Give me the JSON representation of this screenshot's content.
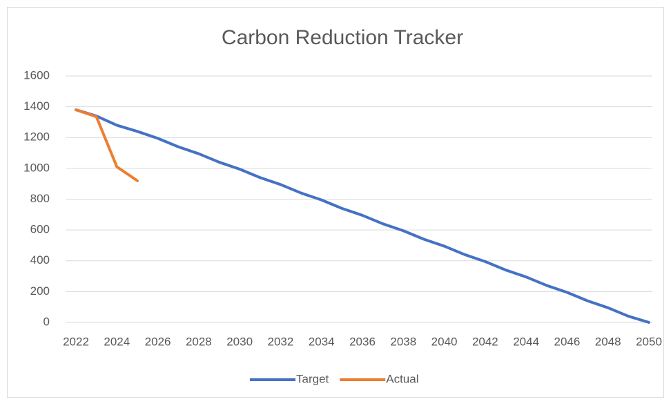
{
  "chart_data": {
    "type": "line",
    "title": "Carbon Reduction Tracker",
    "x": [
      2022,
      2023,
      2024,
      2025,
      2026,
      2027,
      2028,
      2029,
      2030,
      2031,
      2032,
      2033,
      2034,
      2035,
      2036,
      2037,
      2038,
      2039,
      2040,
      2041,
      2042,
      2043,
      2044,
      2045,
      2046,
      2047,
      2048,
      2049,
      2050
    ],
    "series": [
      {
        "name": "Target",
        "color": "#4472c4",
        "values": [
          1380,
          1340,
          1280,
          1240,
          1195,
          1140,
          1095,
          1040,
          995,
          940,
          895,
          840,
          795,
          740,
          695,
          640,
          595,
          540,
          495,
          440,
          395,
          340,
          295,
          240,
          195,
          140,
          95,
          40,
          0
        ]
      },
      {
        "name": "Actual",
        "color": "#ed7d31",
        "values": [
          1380,
          1335,
          1010,
          920,
          null,
          null,
          null,
          null,
          null,
          null,
          null,
          null,
          null,
          null,
          null,
          null,
          null,
          null,
          null,
          null,
          null,
          null,
          null,
          null,
          null,
          null,
          null,
          null,
          null
        ]
      }
    ],
    "xlim": [
      2022,
      2050
    ],
    "xticks": [
      2022,
      2024,
      2026,
      2028,
      2030,
      2032,
      2034,
      2036,
      2038,
      2040,
      2042,
      2044,
      2046,
      2048,
      2050
    ],
    "ylim": [
      0,
      1600
    ],
    "yticks": [
      0,
      200,
      400,
      600,
      800,
      1000,
      1200,
      1400,
      1600
    ],
    "grid": true,
    "legend": "bottom"
  }
}
